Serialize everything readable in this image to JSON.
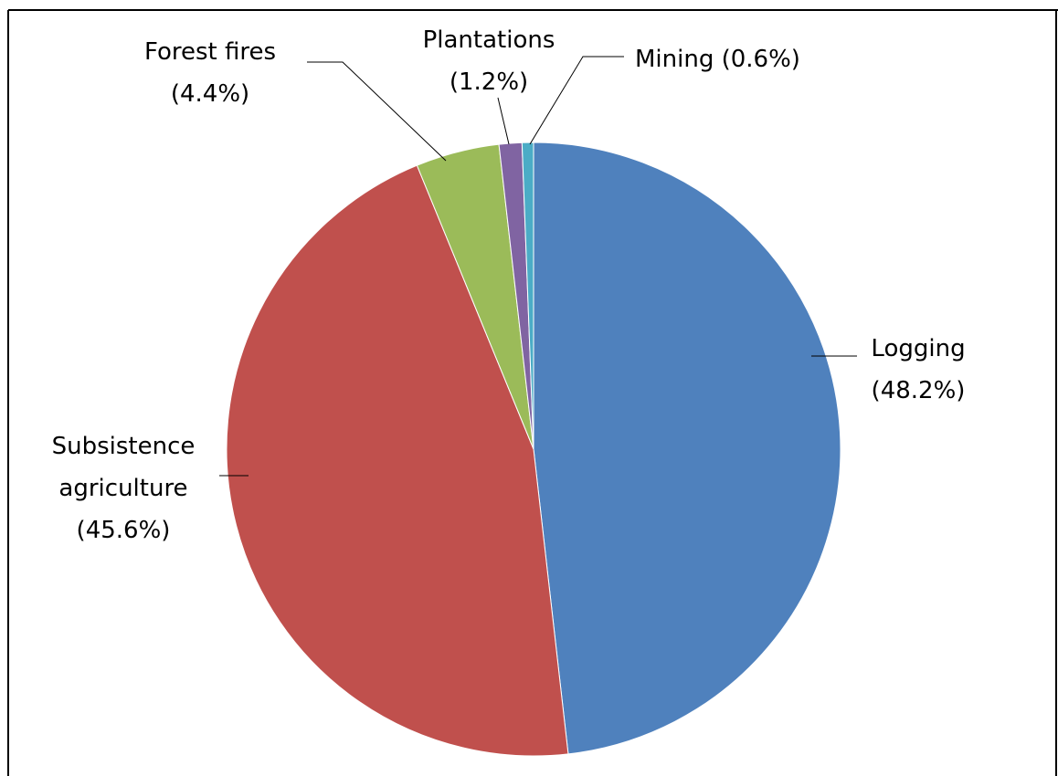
{
  "chart_data": {
    "type": "pie",
    "categories": [
      "Logging",
      "Subsistence agriculture",
      "Forest fires",
      "Plantations",
      "Mining"
    ],
    "values": [
      48.2,
      45.6,
      4.4,
      1.2,
      0.6
    ],
    "value_labels": [
      "(48.2%)",
      "(45.6%)",
      "(4.4%)",
      "(1.2%)",
      "(0.6%)"
    ],
    "label_lines": [
      [
        "Logging",
        "(48.2%)"
      ],
      [
        "Subsistence",
        "agriculture",
        "(45.6%)"
      ],
      [
        "Forest fires",
        "(4.4%)"
      ],
      [
        "Plantations",
        "(1.2%)"
      ],
      [
        "Mining (0.6%)"
      ]
    ],
    "colors": [
      "#4f81bd",
      "#c0504d",
      "#9bbb59",
      "#8064a2",
      "#4bacc6"
    ],
    "start_angle": "12 o'clock",
    "direction": "clockwise",
    "legend": "none",
    "title": ""
  }
}
